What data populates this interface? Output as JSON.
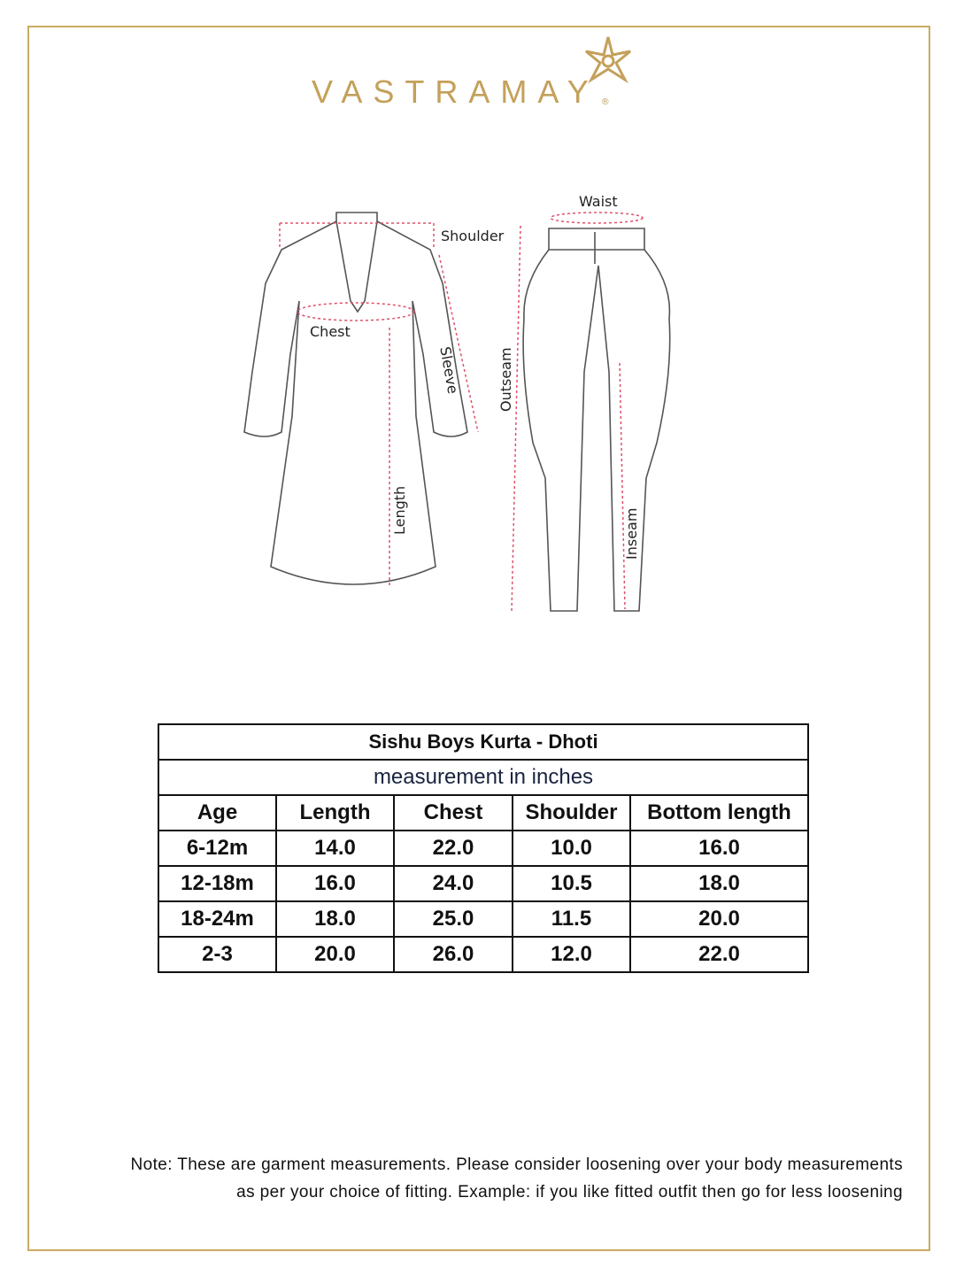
{
  "brand": {
    "name": "VASTRAMAY",
    "registered": "®",
    "color": "#c4a05a"
  },
  "diagram": {
    "labels": {
      "waist": "Waist",
      "shoulder": "Shoulder",
      "chest": "Chest",
      "sleeve": "Sleeve",
      "outseam": "Outseam",
      "length": "Length",
      "inseam": "Inseam"
    },
    "measure_color": "#e0506a"
  },
  "table": {
    "title": "Sishu Boys Kurta - Dhoti",
    "subtitle": "measurement in inches",
    "headers": [
      "Age",
      "Length",
      "Chest",
      "Shoulder",
      "Bottom length"
    ],
    "rows": [
      [
        "6-12m",
        "14.0",
        "22.0",
        "10.0",
        "16.0"
      ],
      [
        "12-18m",
        "16.0",
        "24.0",
        "10.5",
        "18.0"
      ],
      [
        "18-24m",
        "18.0",
        "25.0",
        "11.5",
        "20.0"
      ],
      [
        "2-3",
        "20.0",
        "26.0",
        "12.0",
        "22.0"
      ]
    ]
  },
  "note": {
    "line1": "Note: These are garment measurements. Please consider loosening over your body measurements",
    "line2": "as per your choice of fitting. Example: if you like fitted outfit then go for less loosening"
  }
}
